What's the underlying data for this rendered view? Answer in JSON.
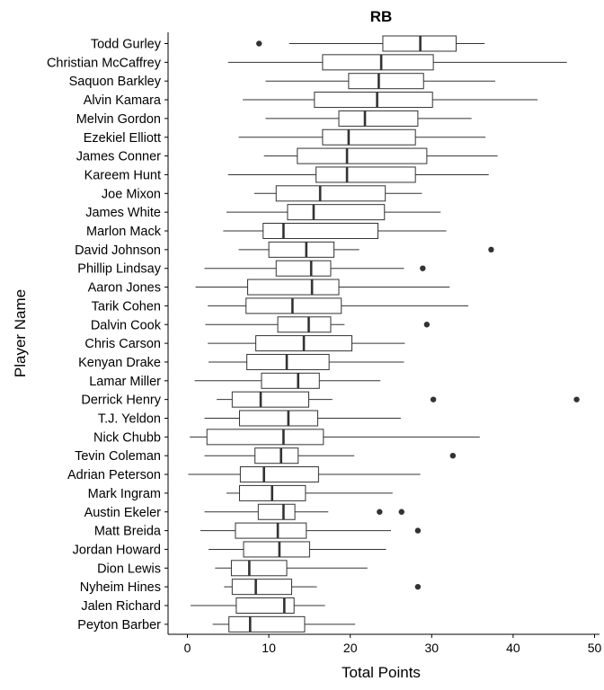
{
  "chart_data": {
    "type": "boxplot",
    "orientation": "horizontal",
    "title": "RB",
    "xlabel": "Total Points",
    "ylabel": "Player Name",
    "xlim": [
      -1.2,
      49.5
    ],
    "xticks": [
      0,
      10,
      20,
      30,
      40,
      50
    ],
    "grid": false,
    "legend": "none",
    "colors": {
      "box_fill": "#ffffff",
      "stroke": "#333333",
      "median": "#333333",
      "outlier": "#333333"
    },
    "players": [
      {
        "name": "Todd Gurley",
        "whisker_low": 12.5,
        "q1": 24.0,
        "median": 28.6,
        "q3": 33.0,
        "whisker_high": 36.5,
        "outliers": [
          8.8
        ]
      },
      {
        "name": "Christian McCaffrey",
        "whisker_low": 5.0,
        "q1": 16.6,
        "median": 23.8,
        "q3": 30.2,
        "whisker_high": 46.6,
        "outliers": []
      },
      {
        "name": "Saquon Barkley",
        "whisker_low": 9.6,
        "q1": 19.8,
        "median": 23.5,
        "q3": 29.0,
        "whisker_high": 37.8,
        "outliers": []
      },
      {
        "name": "Alvin Kamara",
        "whisker_low": 6.8,
        "q1": 15.6,
        "median": 23.3,
        "q3": 30.1,
        "whisker_high": 43.0,
        "outliers": []
      },
      {
        "name": "Melvin Gordon",
        "whisker_low": 9.6,
        "q1": 18.6,
        "median": 21.8,
        "q3": 28.3,
        "whisker_high": 34.9,
        "outliers": []
      },
      {
        "name": "Ezekiel Elliott",
        "whisker_low": 6.3,
        "q1": 16.6,
        "median": 19.8,
        "q3": 28.0,
        "whisker_high": 36.6,
        "outliers": []
      },
      {
        "name": "James Conner",
        "whisker_low": 9.4,
        "q1": 13.5,
        "median": 19.6,
        "q3": 29.4,
        "whisker_high": 38.1,
        "outliers": []
      },
      {
        "name": "Kareem Hunt",
        "whisker_low": 5.0,
        "q1": 15.8,
        "median": 19.6,
        "q3": 28.0,
        "whisker_high": 37.0,
        "outliers": []
      },
      {
        "name": "Joe Mixon",
        "whisker_low": 8.2,
        "q1": 10.9,
        "median": 16.3,
        "q3": 24.3,
        "whisker_high": 28.8,
        "outliers": []
      },
      {
        "name": "James White",
        "whisker_low": 4.8,
        "q1": 12.3,
        "median": 15.5,
        "q3": 24.2,
        "whisker_high": 31.1,
        "outliers": []
      },
      {
        "name": "Marlon Mack",
        "whisker_low": 4.4,
        "q1": 9.3,
        "median": 11.8,
        "q3": 23.4,
        "whisker_high": 31.8,
        "outliers": []
      },
      {
        "name": "David Johnson",
        "whisker_low": 6.3,
        "q1": 10.0,
        "median": 14.6,
        "q3": 18.0,
        "whisker_high": 21.1,
        "outliers": [
          37.3
        ]
      },
      {
        "name": "Phillip Lindsay",
        "whisker_low": 2.1,
        "q1": 10.9,
        "median": 15.2,
        "q3": 17.6,
        "whisker_high": 26.6,
        "outliers": [
          28.9
        ]
      },
      {
        "name": "Aaron Jones",
        "whisker_low": 1.0,
        "q1": 7.4,
        "median": 15.3,
        "q3": 18.6,
        "whisker_high": 32.2,
        "outliers": []
      },
      {
        "name": "Tarik Cohen",
        "whisker_low": 2.5,
        "q1": 7.2,
        "median": 12.9,
        "q3": 18.9,
        "whisker_high": 34.5,
        "outliers": []
      },
      {
        "name": "Dalvin Cook",
        "whisker_low": 2.2,
        "q1": 11.1,
        "median": 14.9,
        "q3": 17.6,
        "whisker_high": 19.3,
        "outliers": [
          29.4
        ]
      },
      {
        "name": "Chris Carson",
        "whisker_low": 2.5,
        "q1": 8.4,
        "median": 14.3,
        "q3": 20.2,
        "whisker_high": 26.7,
        "outliers": []
      },
      {
        "name": "Kenyan Drake",
        "whisker_low": 2.6,
        "q1": 7.3,
        "median": 12.2,
        "q3": 17.4,
        "whisker_high": 26.6,
        "outliers": []
      },
      {
        "name": "Lamar Miller",
        "whisker_low": 0.9,
        "q1": 9.1,
        "median": 13.6,
        "q3": 16.2,
        "whisker_high": 23.7,
        "outliers": []
      },
      {
        "name": "Derrick Henry",
        "whisker_low": 3.6,
        "q1": 5.5,
        "median": 9.0,
        "q3": 14.9,
        "whisker_high": 17.8,
        "outliers": [
          30.2,
          47.8
        ]
      },
      {
        "name": "T.J. Yeldon",
        "whisker_low": 2.1,
        "q1": 6.4,
        "median": 12.4,
        "q3": 16.0,
        "whisker_high": 26.2,
        "outliers": []
      },
      {
        "name": "Nick Chubb",
        "whisker_low": 0.3,
        "q1": 2.4,
        "median": 11.8,
        "q3": 16.7,
        "whisker_high": 35.9,
        "outliers": []
      },
      {
        "name": "Tevin Coleman",
        "whisker_low": 2.1,
        "q1": 8.3,
        "median": 11.5,
        "q3": 13.6,
        "whisker_high": 20.5,
        "outliers": [
          32.6
        ]
      },
      {
        "name": "Adrian Peterson",
        "whisker_low": 0.1,
        "q1": 6.5,
        "median": 9.4,
        "q3": 16.1,
        "whisker_high": 28.6,
        "outliers": []
      },
      {
        "name": "Mark Ingram",
        "whisker_low": 4.8,
        "q1": 6.4,
        "median": 10.4,
        "q3": 14.5,
        "whisker_high": 25.2,
        "outliers": []
      },
      {
        "name": "Austin Ekeler",
        "whisker_low": 2.1,
        "q1": 8.7,
        "median": 11.8,
        "q3": 13.2,
        "whisker_high": 17.3,
        "outliers": [
          23.6,
          26.3
        ]
      },
      {
        "name": "Matt Breida",
        "whisker_low": 1.6,
        "q1": 5.9,
        "median": 11.1,
        "q3": 14.6,
        "whisker_high": 25.0,
        "outliers": [
          28.3
        ]
      },
      {
        "name": "Jordan Howard",
        "whisker_low": 2.6,
        "q1": 6.9,
        "median": 11.3,
        "q3": 15.0,
        "whisker_high": 24.4,
        "outliers": []
      },
      {
        "name": "Dion Lewis",
        "whisker_low": 3.4,
        "q1": 5.4,
        "median": 7.6,
        "q3": 12.2,
        "whisker_high": 22.1,
        "outliers": []
      },
      {
        "name": "Nyheim Hines",
        "whisker_low": 4.5,
        "q1": 5.5,
        "median": 8.4,
        "q3": 12.8,
        "whisker_high": 15.9,
        "outliers": [
          28.3
        ]
      },
      {
        "name": "Jalen Richard",
        "whisker_low": 0.4,
        "q1": 6.0,
        "median": 11.9,
        "q3": 13.1,
        "whisker_high": 16.9,
        "outliers": []
      },
      {
        "name": "Peyton Barber",
        "whisker_low": 3.1,
        "q1": 5.1,
        "median": 7.7,
        "q3": 14.4,
        "whisker_high": 20.6,
        "outliers": []
      }
    ]
  }
}
